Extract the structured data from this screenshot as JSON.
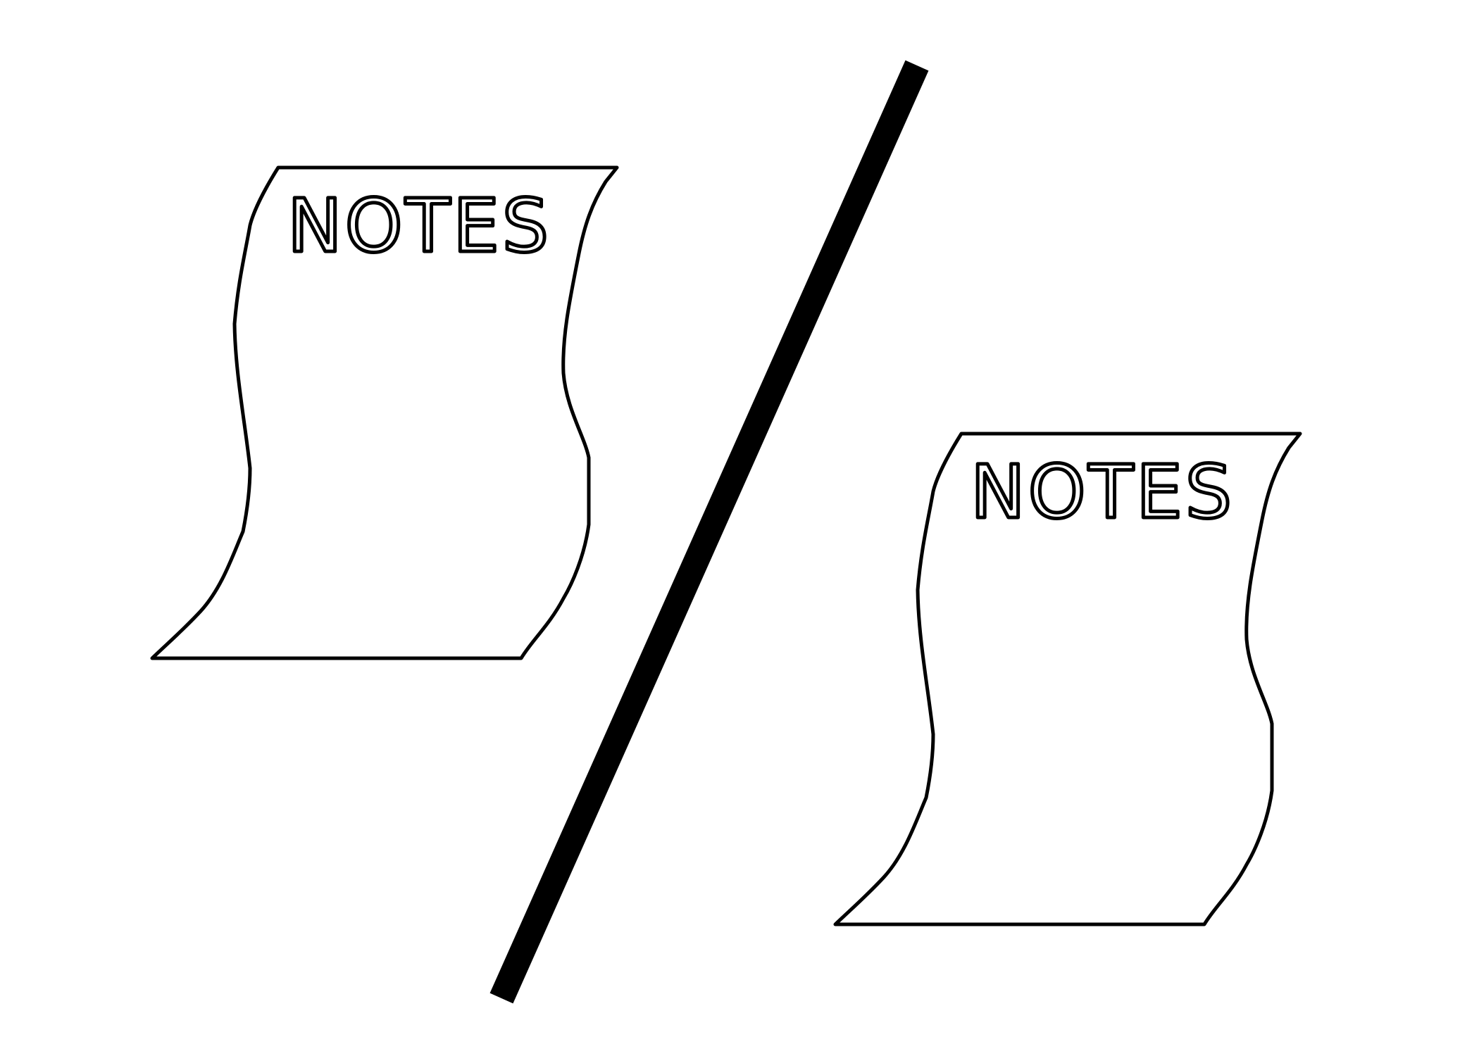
{
  "figure": {
    "background_color": "#ffffff",
    "ink_color": "#000000",
    "left_note": {
      "label": "NOTES",
      "icon": "notes-paper-icon"
    },
    "right_note": {
      "label": "NOTES",
      "icon": "notes-paper-icon"
    },
    "divider": {
      "icon": "slash-divider-icon"
    }
  }
}
